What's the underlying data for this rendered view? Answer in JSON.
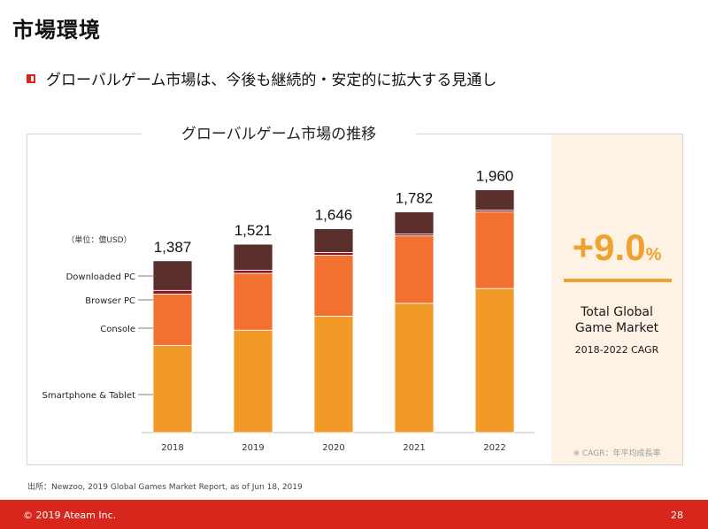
{
  "header": {
    "title": "市場環境",
    "bullet": "グローバルゲーム市場は、今後も継続的・安定的に拡大する見通し"
  },
  "chart_data": {
    "type": "bar",
    "stacked": true,
    "title": "グローバルゲーム市場の推移",
    "unit_label": "（単位：億USD）",
    "categories": [
      "2018",
      "2019",
      "2020",
      "2021",
      "2022"
    ],
    "totals": [
      1387,
      1521,
      1646,
      1782,
      1960
    ],
    "total_labels": [
      "1,387",
      "1,521",
      "1,646",
      "1,782",
      "1,960"
    ],
    "series": [
      {
        "name": "Smartphone & Tablet",
        "color": "#f29a27",
        "values": [
          703,
          827,
          940,
          1044,
          1163
        ]
      },
      {
        "name": "Console",
        "color": "#f37130",
        "values": [
          416,
          459,
          492,
          544,
          618
        ]
      },
      {
        "name": "Browser PC",
        "color": "#8b1523",
        "values": [
          29,
          25,
          22,
          15,
          15
        ]
      },
      {
        "name": "Downloaded PC",
        "color": "#5a2e2b",
        "values": [
          239,
          210,
          192,
          179,
          164
        ]
      }
    ],
    "ylim": [
      0,
      2000
    ],
    "grid": false,
    "legend": "left"
  },
  "cagr": {
    "value": "+9.0",
    "unit": "%",
    "label_line1": "Total Global",
    "label_line2": "Game Market",
    "period": "2018-2022 CAGR",
    "note": "※ CAGR：年平均成長率"
  },
  "source": "出所：Newzoo, 2019 Global Games Market Report, as of Jun 18, 2019",
  "footer": {
    "copyright": "© 2019 Ateam Inc.",
    "page": "28"
  }
}
